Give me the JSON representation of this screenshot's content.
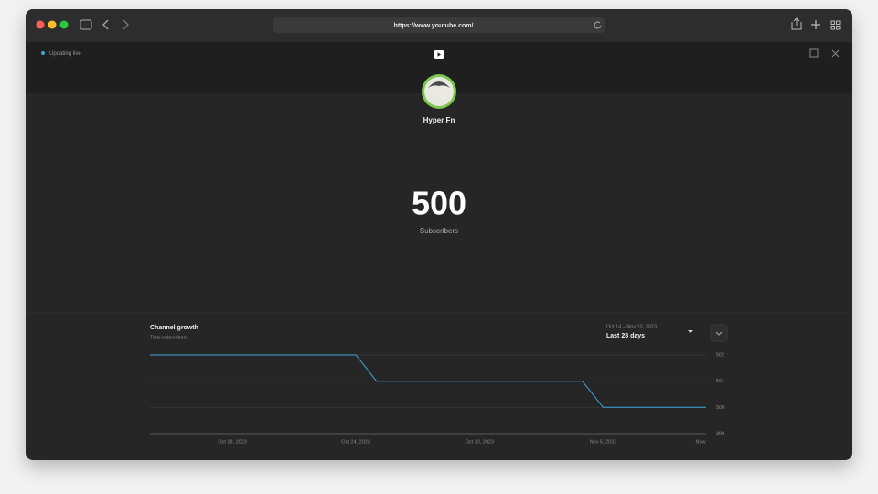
{
  "browser": {
    "url": "https://www.youtube.com/"
  },
  "status": "Updating live",
  "channel": {
    "name": "Hyper Fn",
    "subscriber_count": 500,
    "subscriber_label": "Subscribers"
  },
  "chart_data": {
    "type": "line",
    "title": "Channel growth",
    "subtitle": "Total subscribers",
    "date_range": "Oct 14 – Nov 10, 2023",
    "period": "Last 28 days",
    "x": [
      "2023-10-14",
      "2023-10-24",
      "2023-10-25",
      "2023-11-04",
      "2023-11-05",
      "2023-11-10"
    ],
    "values": [
      502,
      502,
      501,
      501,
      500,
      500
    ],
    "color": "#41a6d9",
    "xlim": [
      "2023-10-14",
      "2023-11-10"
    ],
    "xticks": [
      {
        "value": "2023-10-18",
        "label": "Oct 18, 2023"
      },
      {
        "value": "2023-10-24",
        "label": "Oct 24, 2023"
      },
      {
        "value": "2023-10-30",
        "label": "Oct 30, 2023"
      },
      {
        "value": "2023-11-05",
        "label": "Nov 5, 2023"
      },
      {
        "value": "2023-11-10",
        "label": "Now"
      }
    ],
    "ylim": [
      499,
      502
    ],
    "yticks": [
      502,
      501,
      500,
      499
    ],
    "grid": true
  }
}
